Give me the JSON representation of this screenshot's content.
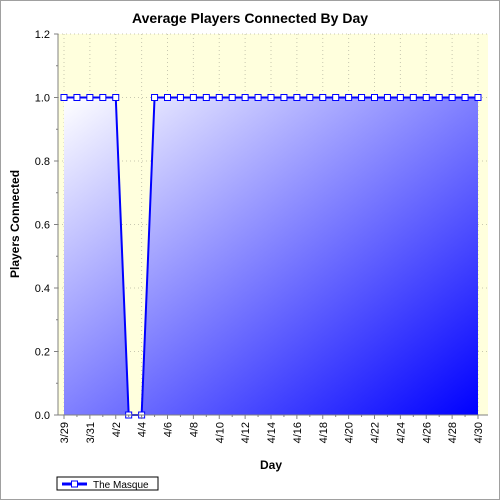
{
  "chart_data": {
    "type": "area",
    "title": "Average Players Connected By Day",
    "xlabel": "Day",
    "ylabel": "Players Connected",
    "ylim": [
      0,
      1.2
    ],
    "yticks": [
      "0.0",
      "0.2",
      "0.4",
      "0.6",
      "0.8",
      "1.0",
      "1.2"
    ],
    "x": [
      "3/29",
      "3/30",
      "3/31",
      "4/1",
      "4/2",
      "4/3",
      "4/4",
      "4/5",
      "4/6",
      "4/7",
      "4/8",
      "4/9",
      "4/10",
      "4/11",
      "4/12",
      "4/13",
      "4/14",
      "4/15",
      "4/16",
      "4/17",
      "4/18",
      "4/19",
      "4/20",
      "4/21",
      "4/22",
      "4/23",
      "4/24",
      "4/25",
      "4/26",
      "4/27",
      "4/28",
      "4/29",
      "4/30"
    ],
    "xtick_labels": [
      "3/29",
      "3/31",
      "4/2",
      "4/4",
      "4/6",
      "4/8",
      "4/10",
      "4/12",
      "4/14",
      "4/16",
      "4/18",
      "4/20",
      "4/22",
      "4/24",
      "4/26",
      "4/28",
      "4/30"
    ],
    "series": [
      {
        "name": "The Masque",
        "values": [
          1,
          1,
          1,
          1,
          1,
          0,
          0,
          1,
          1,
          1,
          1,
          1,
          1,
          1,
          1,
          1,
          1,
          1,
          1,
          1,
          1,
          1,
          1,
          1,
          1,
          1,
          1,
          1,
          1,
          1,
          1,
          1,
          1
        ]
      }
    ],
    "grid": true,
    "legend": "bottom-left",
    "colors": {
      "line": "#0000ff",
      "fill_light": "#ffffff",
      "fill_dark": "#0000ff",
      "plot_background": "#ffffdd",
      "marker_fill": "#ffffff"
    }
  }
}
